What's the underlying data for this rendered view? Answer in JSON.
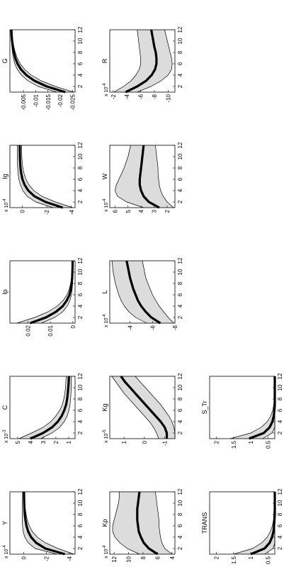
{
  "chart_data": [
    {
      "type": "line",
      "title": "Y",
      "multiplier": "x 10^-4",
      "xlim": [
        1,
        12
      ],
      "ylim": [
        -4.5,
        1.2
      ],
      "xticks": [
        "2",
        "4",
        "6",
        "8",
        "10",
        "12"
      ],
      "yticks": [
        [
          "-4",
          -4
        ],
        [
          "-2",
          -2
        ],
        [
          "0",
          0
        ]
      ],
      "x": [
        1,
        2,
        3,
        4,
        5,
        6,
        7,
        8,
        9,
        10,
        11,
        12
      ],
      "series": [
        {
          "role": "lower",
          "values": [
            -4.4,
            -3.0,
            -1.9,
            -1.2,
            -0.75,
            -0.5,
            -0.32,
            -0.22,
            -0.15,
            -0.1,
            -0.08,
            -0.06
          ]
        },
        {
          "role": "median",
          "values": [
            -3.6,
            -1.9,
            -1.1,
            -0.65,
            -0.4,
            -0.25,
            -0.16,
            -0.1,
            -0.07,
            -0.05,
            -0.04,
            -0.03
          ]
        },
        {
          "role": "upper",
          "values": [
            -2.9,
            -1.0,
            -0.4,
            -0.1,
            0.05,
            0.1,
            0.12,
            0.12,
            0.12,
            0.11,
            0.1,
            0.1
          ]
        }
      ]
    },
    {
      "type": "line",
      "title": "C",
      "multiplier": "x 10^-3",
      "xlim": [
        1,
        12
      ],
      "ylim": [
        0.5,
        5.6
      ],
      "xticks": [
        "2",
        "4",
        "6",
        "8",
        "10",
        "12"
      ],
      "yticks": [
        [
          "1",
          1
        ],
        [
          "2",
          2
        ],
        [
          "3",
          3
        ],
        [
          "4",
          4
        ],
        [
          "5",
          5
        ]
      ],
      "x": [
        1,
        2,
        3,
        4,
        5,
        6,
        7,
        8,
        9,
        10,
        11,
        12
      ],
      "series": [
        {
          "role": "lower",
          "values": [
            3.2,
            2.3,
            1.7,
            1.35,
            1.12,
            0.98,
            0.9,
            0.85,
            0.82,
            0.8,
            0.79,
            0.78
          ]
        },
        {
          "role": "median",
          "values": [
            4.0,
            3.0,
            2.3,
            1.85,
            1.55,
            1.35,
            1.2,
            1.12,
            1.07,
            1.03,
            1.0,
            0.98
          ]
        },
        {
          "role": "upper",
          "values": [
            4.9,
            3.9,
            3.0,
            2.4,
            2.0,
            1.7,
            1.5,
            1.38,
            1.3,
            1.25,
            1.22,
            1.2
          ]
        }
      ]
    },
    {
      "type": "line",
      "title": "Ip",
      "multiplier": "",
      "xlim": [
        1,
        12
      ],
      "ylim": [
        -0.001,
        0.028
      ],
      "xticks": [
        "2",
        "4",
        "6",
        "8",
        "10",
        "12"
      ],
      "yticks": [
        [
          "0",
          0
        ],
        [
          "0.01",
          0.01
        ],
        [
          "0.02",
          0.02
        ]
      ],
      "x": [
        1,
        2,
        3,
        4,
        5,
        6,
        7,
        8,
        9,
        10,
        11,
        12
      ],
      "series": [
        {
          "role": "lower",
          "values": [
            0.014,
            0.008,
            0.0045,
            0.0025,
            0.0013,
            0.0006,
            0.0003,
            0.0001,
            0.0,
            0.0,
            0.0,
            0.0
          ]
        },
        {
          "role": "median",
          "values": [
            0.019,
            0.012,
            0.0075,
            0.0045,
            0.0027,
            0.0015,
            0.0009,
            0.0005,
            0.0003,
            0.0002,
            0.0001,
            0.0001
          ]
        },
        {
          "role": "upper",
          "values": [
            0.025,
            0.017,
            0.011,
            0.007,
            0.0043,
            0.0026,
            0.0016,
            0.001,
            0.0006,
            0.0004,
            0.0003,
            0.0002
          ]
        }
      ]
    },
    {
      "type": "line",
      "title": "Ig",
      "multiplier": "x 10^-4",
      "xlim": [
        1,
        12
      ],
      "ylim": [
        -4.3,
        1.0
      ],
      "xticks": [
        "2",
        "4",
        "6",
        "8",
        "10",
        "12"
      ],
      "yticks": [
        [
          "-4",
          -4
        ],
        [
          "-2",
          -2
        ],
        [
          "0",
          0
        ]
      ],
      "x": [
        1,
        2,
        3,
        4,
        5,
        6,
        7,
        8,
        9,
        10,
        11,
        12
      ],
      "series": [
        {
          "role": "lower",
          "values": [
            -4.1,
            -2.7,
            -1.6,
            -0.95,
            -0.55,
            -0.3,
            -0.15,
            -0.05,
            0.0,
            0.03,
            0.05,
            0.05
          ]
        },
        {
          "role": "median",
          "values": [
            -3.3,
            -1.9,
            -1.0,
            -0.5,
            -0.2,
            -0.02,
            0.08,
            0.14,
            0.17,
            0.19,
            0.2,
            0.2
          ]
        },
        {
          "role": "upper",
          "values": [
            -2.5,
            -1.1,
            -0.4,
            -0.05,
            0.15,
            0.27,
            0.33,
            0.37,
            0.39,
            0.4,
            0.4,
            0.4
          ]
        }
      ]
    },
    {
      "type": "line",
      "title": "G",
      "multiplier": "",
      "xlim": [
        1,
        12
      ],
      "ylim": [
        -0.026,
        0.0005
      ],
      "xticks": [
        "2",
        "4",
        "6",
        "8",
        "10",
        "12"
      ],
      "yticks": [
        [
          "-0.025",
          -0.025
        ],
        [
          "-0.02",
          -0.02
        ],
        [
          "-0.015",
          -0.015
        ],
        [
          "-0.01",
          -0.01
        ],
        [
          "-0.005",
          -0.005
        ]
      ],
      "x": [
        1,
        2,
        3,
        4,
        5,
        6,
        7,
        8,
        9,
        10,
        11,
        12
      ],
      "series": [
        {
          "role": "lower",
          "values": [
            -0.0255,
            -0.018,
            -0.0122,
            -0.0082,
            -0.0055,
            -0.0037,
            -0.0025,
            -0.0017,
            -0.0011,
            -0.0007,
            -0.0005,
            -0.0003
          ]
        },
        {
          "role": "median",
          "values": [
            -0.022,
            -0.0145,
            -0.0095,
            -0.0062,
            -0.004,
            -0.0026,
            -0.0017,
            -0.0011,
            -0.0007,
            -0.0004,
            -0.0002,
            -0.0001
          ]
        },
        {
          "role": "upper",
          "values": [
            -0.0185,
            -0.011,
            -0.0068,
            -0.0042,
            -0.0025,
            -0.0015,
            -0.0009,
            -0.0005,
            -0.0003,
            -0.0001,
            0.0,
            0.0
          ]
        }
      ]
    },
    {
      "type": "line",
      "title": "Kp",
      "multiplier": "x 10^-4",
      "xlim": [
        1,
        12
      ],
      "ylim": [
        3.6,
        12.6
      ],
      "xticks": [
        "2",
        "4",
        "6",
        "8",
        "10",
        "12"
      ],
      "yticks": [
        [
          "4",
          4
        ],
        [
          "6",
          6
        ],
        [
          "8",
          8
        ],
        [
          "10",
          10
        ],
        [
          "12",
          12
        ]
      ],
      "x": [
        1,
        2,
        3,
        4,
        5,
        6,
        7,
        8,
        9,
        10,
        11,
        12
      ],
      "series": [
        {
          "role": "lower",
          "values": [
            4.0,
            5.0,
            5.4,
            5.6,
            5.7,
            5.8,
            5.8,
            5.9,
            6.0,
            6.1,
            6.2,
            6.3
          ]
        },
        {
          "role": "median",
          "values": [
            6.0,
            7.2,
            7.9,
            8.3,
            8.6,
            8.7,
            8.8,
            8.8,
            8.8,
            8.7,
            8.6,
            8.5
          ]
        },
        {
          "role": "upper",
          "values": [
            8.5,
            10.2,
            11.2,
            11.9,
            12.2,
            12.2,
            12.0,
            11.8,
            11.6,
            11.4,
            11.3,
            11.3
          ]
        }
      ]
    },
    {
      "type": "line",
      "title": "Kg",
      "multiplier": "x 10^-5",
      "xlim": [
        1,
        12
      ],
      "ylim": [
        -1.5,
        1.7
      ],
      "xticks": [
        "2",
        "4",
        "6",
        "8",
        "10",
        "12"
      ],
      "yticks": [
        [
          "-1",
          -1
        ],
        [
          "0",
          0
        ],
        [
          "1",
          1
        ]
      ],
      "x": [
        1,
        2,
        3,
        4,
        5,
        6,
        7,
        8,
        9,
        10,
        11,
        12
      ],
      "series": [
        {
          "role": "lower",
          "values": [
            -1.5,
            -1.5,
            -1.45,
            -1.35,
            -1.2,
            -1.0,
            -0.8,
            -0.55,
            -0.3,
            -0.05,
            0.2,
            0.45
          ]
        },
        {
          "role": "median",
          "values": [
            -1.1,
            -1.1,
            -1.0,
            -0.8,
            -0.55,
            -0.3,
            -0.05,
            0.2,
            0.45,
            0.7,
            0.95,
            1.15
          ]
        },
        {
          "role": "upper",
          "values": [
            -0.7,
            -0.6,
            -0.45,
            -0.25,
            0.0,
            0.25,
            0.5,
            0.75,
            1.0,
            1.2,
            1.4,
            1.6
          ]
        }
      ]
    },
    {
      "type": "line",
      "title": "L",
      "multiplier": "x 10^-4",
      "xlim": [
        1,
        12
      ],
      "ylim": [
        -8,
        -2.2
      ],
      "xticks": [
        "2",
        "4",
        "6",
        "8",
        "10",
        "12"
      ],
      "yticks": [
        [
          "-8",
          -8
        ],
        [
          "-6",
          -6
        ],
        [
          "-4",
          -4
        ]
      ],
      "x": [
        1,
        2,
        3,
        4,
        5,
        6,
        7,
        8,
        9,
        10,
        11,
        12
      ],
      "series": [
        {
          "role": "lower",
          "values": [
            -7.9,
            -7.4,
            -7.0,
            -6.6,
            -6.3,
            -6.0,
            -5.8,
            -5.6,
            -5.4,
            -5.3,
            -5.2,
            -5.1
          ]
        },
        {
          "role": "median",
          "values": [
            -6.7,
            -5.9,
            -5.4,
            -5.0,
            -4.7,
            -4.5,
            -4.3,
            -4.15,
            -4.0,
            -3.9,
            -3.8,
            -3.7
          ]
        },
        {
          "role": "upper",
          "values": [
            -5.5,
            -4.5,
            -3.9,
            -3.5,
            -3.2,
            -3.0,
            -2.85,
            -2.7,
            -2.6,
            -2.5,
            -2.45,
            -2.4
          ]
        }
      ]
    },
    {
      "type": "line",
      "title": "W",
      "multiplier": "x 10^-4",
      "xlim": [
        1,
        12
      ],
      "ylim": [
        1.4,
        6.4
      ],
      "xticks": [
        "2",
        "4",
        "6",
        "8",
        "10",
        "12"
      ],
      "yticks": [
        [
          "2",
          2
        ],
        [
          "3",
          3
        ],
        [
          "4",
          4
        ],
        [
          "5",
          5
        ],
        [
          "6",
          6
        ]
      ],
      "x": [
        1,
        2,
        3,
        4,
        5,
        6,
        7,
        8,
        9,
        10,
        11,
        12
      ],
      "series": [
        {
          "role": "lower",
          "values": [
            1.5,
            2.0,
            2.3,
            2.5,
            2.6,
            2.65,
            2.7,
            2.7,
            2.75,
            2.8,
            2.85,
            2.9
          ]
        },
        {
          "role": "median",
          "values": [
            2.6,
            3.4,
            3.8,
            4.0,
            4.1,
            4.1,
            4.05,
            4.0,
            3.95,
            3.9,
            3.85,
            3.8
          ]
        },
        {
          "role": "upper",
          "values": [
            3.8,
            5.1,
            5.8,
            6.0,
            5.9,
            5.7,
            5.5,
            5.3,
            5.15,
            5.0,
            4.9,
            4.8
          ]
        }
      ]
    },
    {
      "type": "line",
      "title": "R",
      "multiplier": "x 10^-4",
      "xlim": [
        1,
        12
      ],
      "ylim": [
        -11,
        -1.5
      ],
      "xticks": [
        "2",
        "4",
        "6",
        "8",
        "10",
        "12"
      ],
      "yticks": [
        [
          "-10",
          -10
        ],
        [
          "-8",
          -8
        ],
        [
          "-6",
          -6
        ],
        [
          "-4",
          -4
        ],
        [
          "-2",
          -2
        ]
      ],
      "x": [
        1,
        2,
        3,
        4,
        5,
        6,
        7,
        8,
        9,
        10,
        11,
        12
      ],
      "series": [
        {
          "role": "lower",
          "values": [
            -5.5,
            -7.5,
            -9.0,
            -10.0,
            -10.5,
            -10.6,
            -10.5,
            -10.3,
            -10.1,
            -9.9,
            -9.7,
            -9.5
          ]
        },
        {
          "role": "median",
          "values": [
            -3.8,
            -5.5,
            -6.8,
            -7.6,
            -8.1,
            -8.3,
            -8.3,
            -8.2,
            -8.0,
            -7.85,
            -7.7,
            -7.55
          ]
        },
        {
          "role": "upper",
          "values": [
            -2.1,
            -3.5,
            -4.6,
            -5.3,
            -5.8,
            -6.0,
            -6.0,
            -5.9,
            -5.8,
            -5.7,
            -5.6,
            -5.5
          ]
        }
      ]
    },
    {
      "type": "line",
      "title": "TRANS",
      "multiplier": "",
      "xlim": [
        1,
        12
      ],
      "ylim": [
        0.3,
        2.2
      ],
      "xticks": [
        "2",
        "4",
        "6",
        "8",
        "10",
        "12"
      ],
      "yticks": [
        [
          "0.5",
          0.5
        ],
        [
          "1",
          1
        ],
        [
          "1.5",
          1.5
        ],
        [
          "2",
          2
        ]
      ],
      "x": [
        1,
        2,
        3,
        4,
        5,
        6,
        7,
        8,
        9,
        10,
        11,
        12
      ],
      "series": [
        {
          "role": "lower",
          "values": [
            0.6,
            0.35,
            0.3,
            0.3,
            0.3,
            0.3,
            0.3,
            0.3,
            0.3,
            0.3,
            0.3,
            0.3
          ]
        },
        {
          "role": "median",
          "values": [
            1.0,
            0.6,
            0.45,
            0.38,
            0.34,
            0.32,
            0.31,
            0.3,
            0.3,
            0.3,
            0.3,
            0.3
          ]
        },
        {
          "role": "upper",
          "values": [
            1.5,
            0.95,
            0.68,
            0.52,
            0.43,
            0.37,
            0.34,
            0.33,
            0.32,
            0.31,
            0.31,
            0.31
          ]
        }
      ]
    },
    {
      "type": "line",
      "title": "S_Tr",
      "multiplier": "",
      "xlim": [
        1,
        12
      ],
      "ylim": [
        0.3,
        2.2
      ],
      "xticks": [
        "2",
        "4",
        "6",
        "8",
        "10",
        "12"
      ],
      "yticks": [
        [
          "0.5",
          0.5
        ],
        [
          "1",
          1
        ],
        [
          "1.5",
          1.5
        ],
        [
          "2",
          2
        ]
      ],
      "x": [
        1,
        2,
        3,
        4,
        5,
        6,
        7,
        8,
        9,
        10,
        11,
        12
      ],
      "series": [
        {
          "role": "lower",
          "values": [
            0.65,
            0.38,
            0.3,
            0.3,
            0.3,
            0.3,
            0.3,
            0.3,
            0.3,
            0.3,
            0.3,
            0.3
          ]
        },
        {
          "role": "median",
          "values": [
            1.05,
            0.62,
            0.45,
            0.37,
            0.33,
            0.31,
            0.3,
            0.3,
            0.3,
            0.3,
            0.3,
            0.3
          ]
        },
        {
          "role": "upper",
          "values": [
            1.6,
            1.0,
            0.7,
            0.52,
            0.42,
            0.36,
            0.33,
            0.32,
            0.31,
            0.31,
            0.31,
            0.31
          ]
        }
      ]
    }
  ]
}
